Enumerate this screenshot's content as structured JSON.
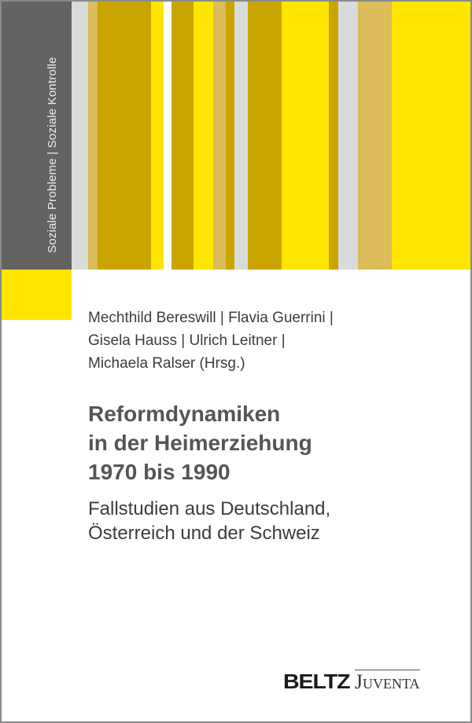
{
  "series_label": "Soziale Probleme  |  Soziale Kontrolle",
  "colors": {
    "sidebar": "#636362",
    "yellow": "#ffe500",
    "dark_gold": "#caa500",
    "tan": "#dbbc58",
    "light_gray": "#d9dbda",
    "white": "#ffffff"
  },
  "stripes": [
    "light_gray",
    "tan",
    "dark_gold",
    "yellow",
    "white",
    "dark_gold",
    "yellow",
    "tan",
    "dark_gold",
    "light_gray",
    "dark_gold",
    "yellow",
    "dark_gold",
    "light_gray",
    "tan",
    "yellow"
  ],
  "authors": [
    "Mechthild Bereswill  |  Flavia Guerrini  |",
    "Gisela Hauss  |  Ulrich Leitner  |",
    "Michaela Ralser (Hrsg.)"
  ],
  "title": [
    "Reformdynamiken",
    "in der Heimerziehung",
    "1970 bis 1990"
  ],
  "subtitle": [
    "Fallstudien aus Deutschland,",
    "Österreich und der Schweiz"
  ],
  "publisher": {
    "part1": "BELTZ",
    "part2": "Juventa"
  }
}
